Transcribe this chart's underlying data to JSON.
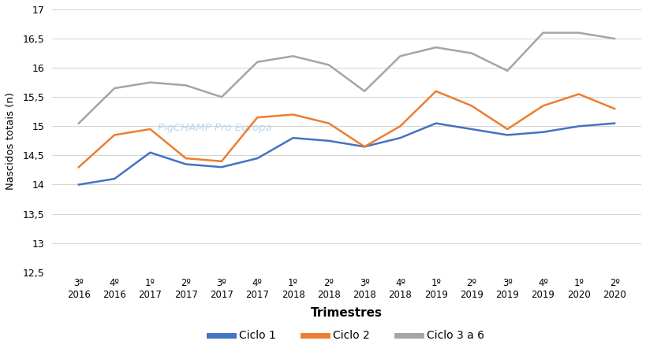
{
  "x_top": [
    "3º",
    "4º",
    "1º",
    "2º",
    "3º",
    "4º",
    "1º",
    "2º",
    "3º",
    "4º",
    "1º",
    "2º",
    "3º",
    "4º",
    "1º",
    "2º"
  ],
  "x_bot": [
    "2016",
    "2016",
    "2017",
    "2017",
    "2017",
    "2017",
    "2018",
    "2018",
    "2018",
    "2018",
    "2019",
    "2019",
    "2019",
    "2019",
    "2020",
    "2020"
  ],
  "ciclo1": [
    14.0,
    14.1,
    14.55,
    14.35,
    14.3,
    14.45,
    14.8,
    14.75,
    14.65,
    14.8,
    15.05,
    14.95,
    14.85,
    14.9,
    15.0,
    15.05
  ],
  "ciclo2": [
    14.3,
    14.85,
    14.95,
    14.45,
    14.4,
    15.15,
    15.2,
    15.05,
    14.65,
    15.0,
    15.6,
    15.35,
    14.95,
    15.35,
    15.55,
    15.3
  ],
  "ciclo3a6": [
    15.05,
    15.65,
    15.75,
    15.7,
    15.5,
    16.1,
    16.2,
    16.05,
    15.6,
    16.2,
    16.35,
    16.25,
    15.95,
    16.6,
    16.6,
    16.5
  ],
  "ciclo1_color": "#4472C4",
  "ciclo2_color": "#ED7D31",
  "ciclo3a6_color": "#A5A5A5",
  "ylabel": "Nascidos totais (n)",
  "xlabel": "Trimestres",
  "ylim_min": 12.5,
  "ylim_max": 17.0,
  "yticks": [
    12.5,
    13.0,
    13.5,
    14.0,
    14.5,
    15.0,
    15.5,
    16.0,
    16.5,
    17.0
  ],
  "ytick_labels": [
    "12,5",
    "13",
    "13,5",
    "14",
    "14,5",
    "15",
    "15,5",
    "16",
    "16,5",
    "17"
  ],
  "watermark": "PigCHAMP Pro Europa",
  "legend_labels": [
    "Ciclo 1",
    "Ciclo 2",
    "Ciclo 3 a 6"
  ],
  "background_color": "#ffffff",
  "grid_color": "#d3d3d3"
}
